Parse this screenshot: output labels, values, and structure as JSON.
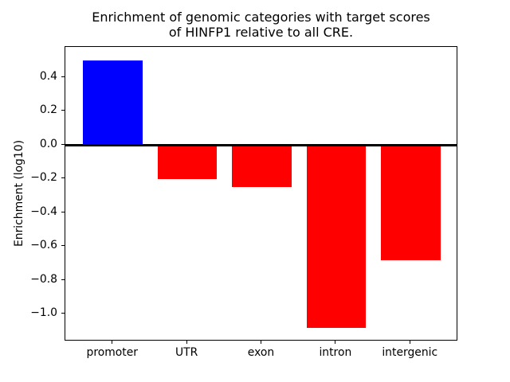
{
  "figure": {
    "background": "#ffffff",
    "axes_border_color": "#000000",
    "zero_line_color": "#000000",
    "positive_bar_color": "#0000ff",
    "negative_bar_color": "#ff0000"
  },
  "chart_data": {
    "type": "bar",
    "title": "Enrichment of genomic categories with target scores\nof HINFP1 relative to all CRE.",
    "xlabel": "",
    "ylabel": "Enrichment (log10)",
    "categories": [
      "promoter",
      "UTR",
      "exon",
      "intron",
      "intergenic"
    ],
    "values": [
      0.5,
      -0.2,
      -0.25,
      -1.08,
      -0.68
    ],
    "bar_colors": [
      "#0000ff",
      "#ff0000",
      "#ff0000",
      "#ff0000",
      "#ff0000"
    ],
    "bar_width": 0.8,
    "xlim": [
      -0.64,
      4.64
    ],
    "ylim": [
      -1.16,
      0.58
    ],
    "yticks": [
      {
        "value": 0.4,
        "label": "0.4"
      },
      {
        "value": 0.2,
        "label": "0.2"
      },
      {
        "value": 0.0,
        "label": "0.0"
      },
      {
        "value": -0.2,
        "label": "−0.2"
      },
      {
        "value": -0.4,
        "label": "−0.4"
      },
      {
        "value": -0.6,
        "label": "−0.6"
      },
      {
        "value": -0.8,
        "label": "−0.8"
      },
      {
        "value": -1.0,
        "label": "−1.0"
      }
    ],
    "zero_line": {
      "value": 0.0
    },
    "grid": false,
    "legend": null
  }
}
